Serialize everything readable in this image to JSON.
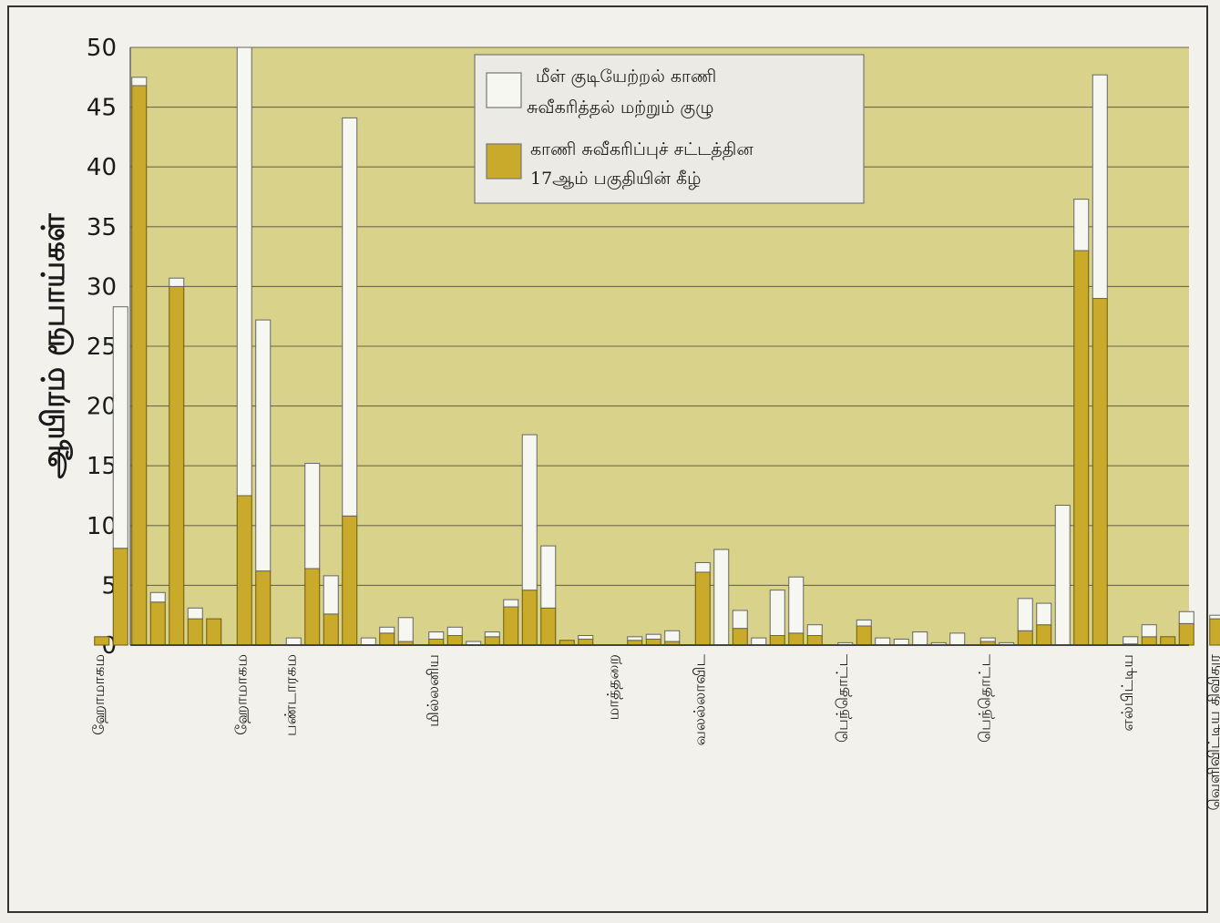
{
  "chart_data": {
    "type": "bar",
    "stacked": true,
    "ylabel": "ஆயிரம் ரூபாய்கள்",
    "xlabel": "",
    "ylim": [
      0,
      50
    ],
    "yticks": [
      0,
      5,
      10,
      15,
      20,
      25,
      30,
      35,
      40,
      45,
      50
    ],
    "grid": true,
    "legend_position": "top-center",
    "legend": [
      {
        "name": "மீள் குடியேற்றல் காணி சுவீகரித்தல் மற்றும் குழு",
        "lines": [
          "மீள் குடியேற்றல் காணி",
          "சுவீகரித்தல் மற்றும் குழு"
        ],
        "color": "#f7f7f2"
      },
      {
        "name": "காணி சுவீகரிப்புச் சட்டத்தின 17ஆம் பகுதியின் கீழ்",
        "lines": [
          "காணி சுவீகரிப்புச் சட்டத்தின",
          "17ஆம் பகுதியின் கீழ்"
        ],
        "color": "#c9aa2a"
      }
    ],
    "groups": [
      {
        "label": "ஹேராமாகம",
        "bars": [
          [
            0.7,
            0
          ],
          [
            8.1,
            20.2
          ],
          [
            46.8,
            0.7
          ],
          [
            3.6,
            0.8
          ],
          [
            30,
            0.7
          ],
          [
            2.2,
            0.9
          ],
          [
            2.2,
            0
          ]
        ]
      },
      {
        "label": "ஹேராமாகம",
        "bars": [
          [
            12.5,
            37.5
          ],
          [
            6.2,
            21
          ]
        ]
      },
      {
        "label": "பண்டாரகம",
        "bars": [
          [
            0,
            0.6
          ],
          [
            6.4,
            8.8
          ],
          [
            2.6,
            3.2
          ],
          [
            10.8,
            33.3
          ],
          [
            0,
            0.6
          ],
          [
            1,
            0.5
          ],
          [
            0.3,
            2
          ]
        ]
      },
      {
        "label": "மில்லனிய",
        "bars": [
          [
            0.5,
            0.6
          ],
          [
            0.8,
            0.7
          ],
          [
            0,
            0.3
          ],
          [
            0.7,
            0.4
          ],
          [
            3.2,
            0.6
          ],
          [
            4.6,
            13
          ],
          [
            3.1,
            5.2
          ],
          [
            0.4,
            0
          ],
          [
            0.5,
            0.3
          ]
        ]
      },
      {
        "label": "மாத்தறை",
        "bars": [
          [
            0,
            0
          ],
          [
            0.4,
            0.3
          ],
          [
            0.5,
            0.4
          ],
          [
            0.3,
            0.9
          ]
        ]
      },
      {
        "label": "வலல்லாவிட",
        "bars": [
          [
            6.1,
            0.8
          ],
          [
            0,
            8
          ],
          [
            1.4,
            1.5
          ],
          [
            0,
            0.6
          ],
          [
            0.8,
            3.8
          ],
          [
            1,
            4.7
          ],
          [
            0.8,
            0.9
          ]
        ]
      },
      {
        "label": "பெந்தொட்ட",
        "bars": [
          [
            0,
            0.2
          ],
          [
            1.6,
            0.5
          ],
          [
            0,
            0.6
          ],
          [
            0,
            0.5
          ],
          [
            0,
            1.1
          ],
          [
            0,
            0.2
          ],
          [
            0,
            1
          ]
        ]
      },
      {
        "label": "பெந்தொட்ட",
        "bars": [
          [
            0.3,
            0.3
          ],
          [
            0,
            0.2
          ],
          [
            1.2,
            2.7
          ],
          [
            1.7,
            1.8
          ],
          [
            0,
            11.7
          ],
          [
            33,
            4.3
          ],
          [
            29,
            18.7
          ]
        ]
      },
      {
        "label": "எல்பிட்டிய",
        "bars": [
          [
            0.1,
            0.6
          ],
          [
            0.7,
            1
          ],
          [
            0.7,
            0
          ],
          [
            1.8,
            1
          ]
        ]
      },
      {
        "label": "வெளிவிட்டிய திவிதுர",
        "bars": [
          [
            2.2,
            0.3
          ]
        ]
      }
    ],
    "x_labels": [
      "ஹோமாகம",
      "ஹோமாகம",
      "பண்டாரகம",
      "மில்லனிய",
      "மாத்தறை",
      "வலல்லாவிட",
      "பெந்தொட்ட",
      "பெந்தொட்ட",
      "எல்பிட்டிய",
      "வெளிவிட்டிய திவிதுர"
    ]
  }
}
